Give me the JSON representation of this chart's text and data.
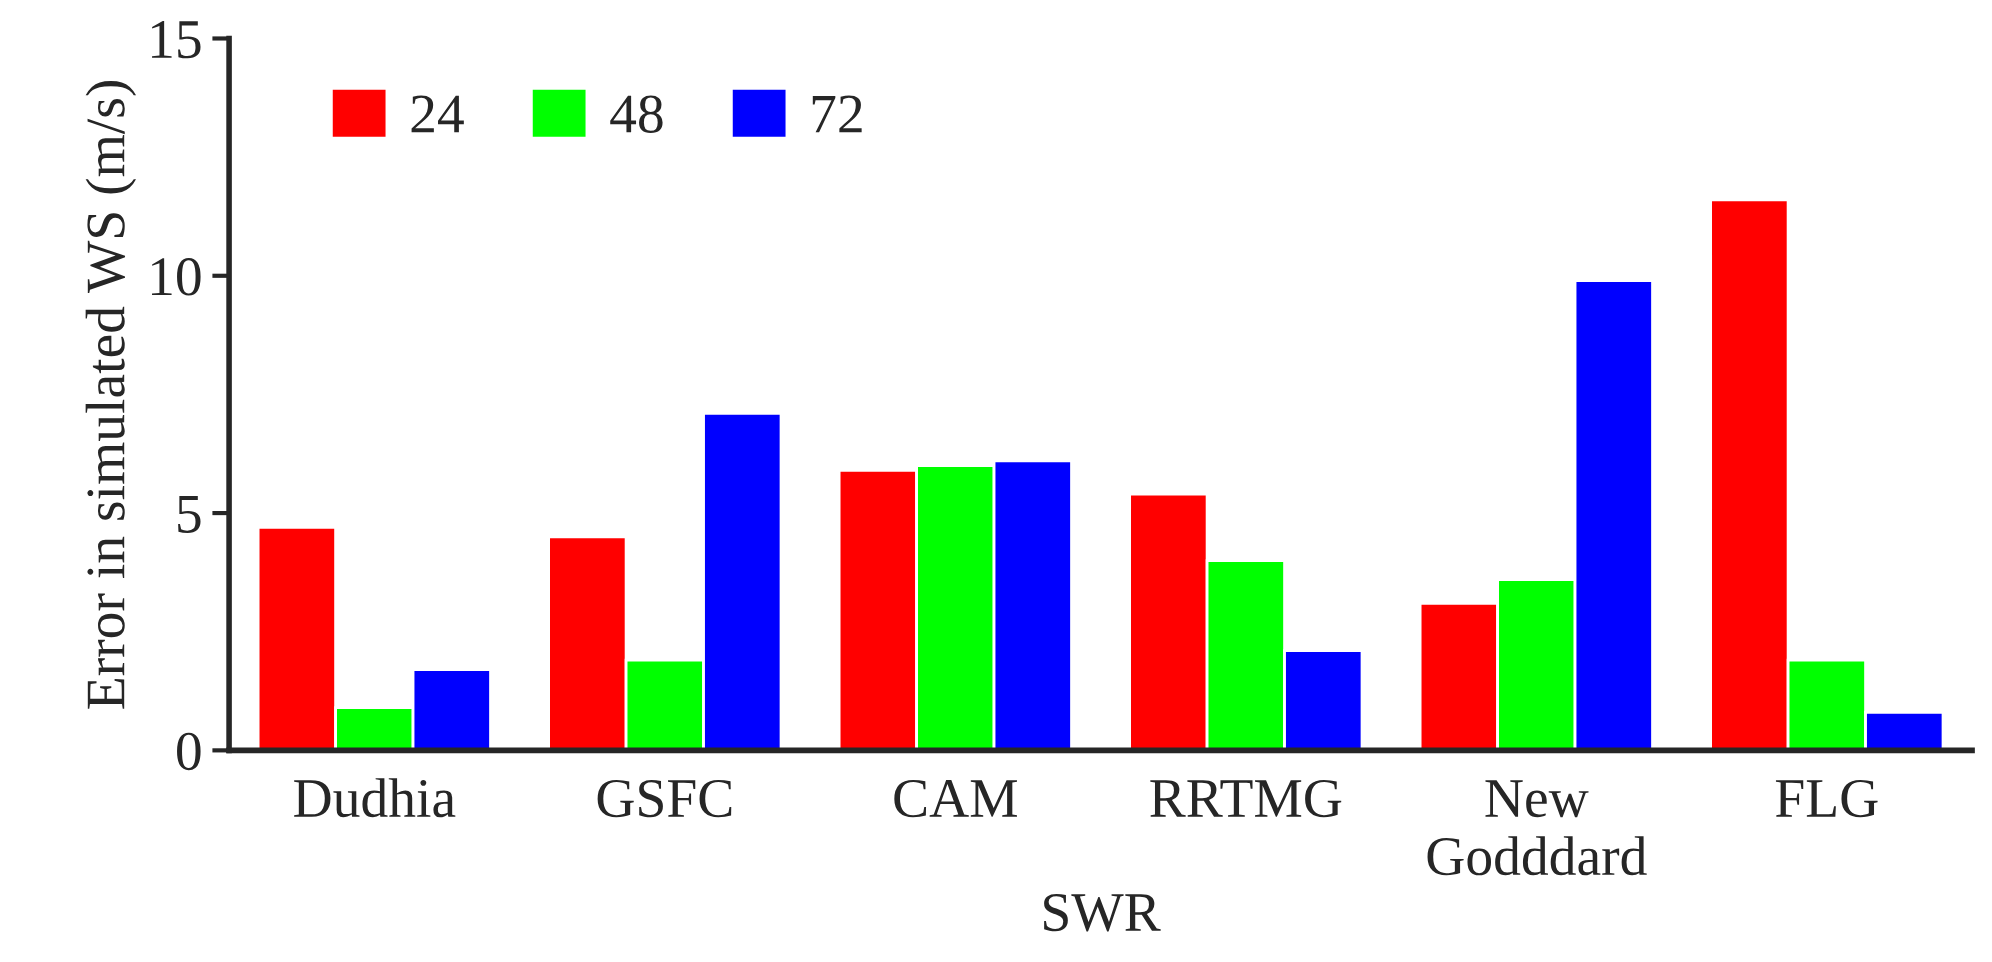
{
  "chart_data": {
    "type": "bar",
    "xlabel": "SWR",
    "ylabel": "Error in simulated WS (m/s)",
    "categories": [
      "Dudhia",
      "GSFC",
      "CAM",
      "RRTMG",
      "New\nGodddard",
      "FLG"
    ],
    "series": [
      {
        "name": "24",
        "color": "#ff0000",
        "values": [
          4.7,
          4.5,
          5.9,
          5.4,
          3.1,
          11.6
        ]
      },
      {
        "name": "48",
        "color": "#00ff00",
        "values": [
          0.9,
          1.9,
          6.0,
          4.0,
          3.6,
          1.9
        ]
      },
      {
        "name": "72",
        "color": "#0000ff",
        "values": [
          1.7,
          7.1,
          6.1,
          2.1,
          9.9,
          0.8
        ]
      }
    ],
    "ylim": [
      0,
      15
    ],
    "yticks": [
      0,
      5,
      10,
      15
    ],
    "grid": false,
    "legend": "top left"
  }
}
